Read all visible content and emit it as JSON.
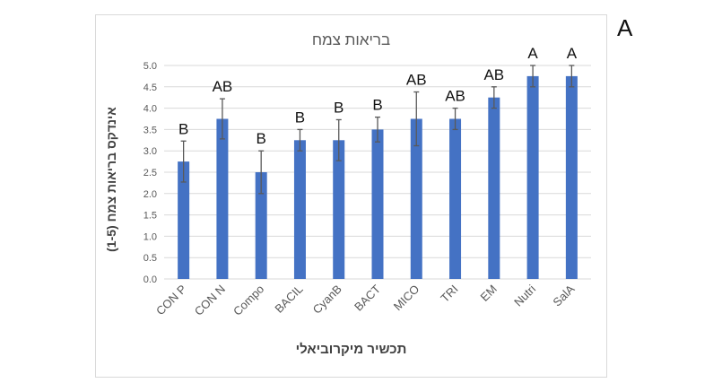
{
  "panel_letter": "A",
  "chart_data": {
    "type": "bar",
    "title": "בריאות צמח",
    "xlabel": "תכשיר מיקרוביאלי",
    "ylabel": "אינדקס בריאות צמח (1-5)",
    "ylim": [
      0,
      5
    ],
    "yticks": [
      "0.0",
      "0.5",
      "1.0",
      "1.5",
      "2.0",
      "2.5",
      "3.0",
      "3.5",
      "4.0",
      "4.5",
      "5.0"
    ],
    "grid": true,
    "legend": null,
    "bar_color": "#4472c4",
    "error_bar_color": "#595959",
    "categories": [
      "CON P",
      "CON N",
      "Compo",
      "BACIL",
      "CyanB",
      "BACT",
      "MICO",
      "TRI",
      "EM",
      "Nutri",
      "SalA"
    ],
    "values": [
      2.75,
      3.75,
      2.5,
      3.25,
      3.25,
      3.5,
      3.75,
      3.75,
      4.25,
      4.75,
      4.75
    ],
    "errors": [
      0.48,
      0.47,
      0.5,
      0.25,
      0.48,
      0.29,
      0.63,
      0.25,
      0.25,
      0.25,
      0.25
    ],
    "significance_letters": [
      "B",
      "AB",
      "B",
      "B",
      "B",
      "B",
      "AB",
      "AB",
      "AB",
      "A",
      "A"
    ]
  }
}
